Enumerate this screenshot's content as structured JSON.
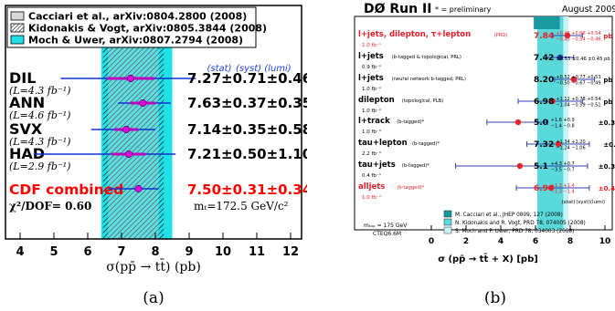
{
  "chart_data": [
    {
      "type": "scatter",
      "panel_label": "(a)",
      "xlabel": "σ(pp̄ → tt̄) (pb)",
      "x_ticks": [
        4,
        5,
        6,
        7,
        8,
        9,
        10,
        11,
        12
      ],
      "xlim": [
        4,
        12
      ],
      "grid": false,
      "legend_position": "top-left",
      "legend": [
        {
          "label": "Cacciari et al., arXiv:0804.2800 (2008)",
          "style": "grey-box"
        },
        {
          "label": "Kidonakis & Vogt, arXiv:0805.3844 (2008)",
          "style": "hatched"
        },
        {
          "label": "Moch & Uwer, arXiv:0807.2794 (2008)",
          "style": "cyan"
        }
      ],
      "theory_bands": [
        {
          "name": "Cacciari et al.",
          "range": [
            6.6,
            8.1
          ],
          "color": "#d8d8d8"
        },
        {
          "name": "Kidonakis & Vogt",
          "range": [
            6.45,
            8.25
          ],
          "color": "hatched"
        },
        {
          "name": "Moch & Uwer",
          "range": [
            6.4,
            8.5
          ],
          "color": "#22e0e8"
        }
      ],
      "column_headers": [
        "(stat)",
        "(syst)",
        "(lumi)"
      ],
      "points": [
        {
          "name": "DIL",
          "lumi": "(L=4.3 fb⁻¹)",
          "value": 7.27,
          "stat": 0.71,
          "syst": 0.46,
          "lumi_err": 0.42,
          "text": "7.27±0.71±0.46±0.42",
          "total_range": [
            5.2,
            9.2
          ]
        },
        {
          "name": "ANN",
          "lumi": "(L=4.6 fb⁻¹)",
          "value": 7.63,
          "stat": 0.37,
          "syst": 0.35,
          "lumi_err": 0.15,
          "text": "7.63±0.37±0.35±0.15",
          "total_range": [
            6.9,
            8.45
          ]
        },
        {
          "name": "SVX",
          "lumi": "(L=4.3 fb⁻¹)",
          "value": 7.14,
          "stat": 0.35,
          "syst": 0.58,
          "lumi_err": 0.14,
          "text": "7.14±0.35±0.58±0.14",
          "total_range": [
            6.1,
            8.0
          ]
        },
        {
          "name": "HAD",
          "lumi": "(L=2.9 fb⁻¹)",
          "value": 7.21,
          "stat": 0.5,
          "syst": 1.1,
          "lumi_err": 0.42,
          "text": "7.21±0.50±1.10±0.42",
          "total_range": [
            4.4,
            8.6
          ]
        }
      ],
      "combined": {
        "name": "CDF combined",
        "value": 7.5,
        "stat": 0.31,
        "syst": 0.34,
        "lumi_err": 0.15,
        "text": "7.50±0.31±0.34±0.15",
        "total_range": [
          6.6,
          8.1
        ],
        "color": "#ff0000"
      },
      "chi2": "χ²/DOF= 0.60",
      "mass_note": "mₜ=172.5 GeV/c²"
    },
    {
      "type": "scatter",
      "panel_label": "(b)",
      "title": "DØ Run II",
      "subtitle": "* = preliminary",
      "date": "August 2009",
      "xlabel": "σ (pp̄ → tt̄ + X) [pb]",
      "x_ticks": [
        0,
        2,
        4,
        6,
        8,
        10,
        12
      ],
      "xlim": [
        0,
        12.6
      ],
      "grid": false,
      "theory_bands": [
        {
          "name": "Cacciari",
          "range": [
            5.9,
            7.4
          ],
          "color": "#1a9aa0"
        },
        {
          "name": "Kidonakis",
          "range": [
            6.1,
            7.6
          ],
          "color": "#5ad8da"
        },
        {
          "name": "Moch",
          "range": [
            6.3,
            7.9
          ],
          "color": "#c8f4f6"
        }
      ],
      "column_headers": [
        "(stat)",
        "(syst)",
        "(lumi)"
      ],
      "points": [
        {
          "label": "l+jets, dilepton, τ+lepton",
          "tag": "(PRD)",
          "lumi": "1.0 fb⁻¹",
          "value": 7.84,
          "low": 7.0,
          "high": 8.7,
          "res_main": "7.84",
          "res_sup": "+0.46 +0.66 +0.54",
          "res_sub": "−0.45 −0.54 −0.46",
          "res_tail": "pb",
          "color": "#e8202a"
        },
        {
          "label": "l+jets",
          "tag": "(b-tagged & topological, PRL)",
          "lumi": "0.9 fb⁻¹",
          "value": 7.42,
          "low": 6.6,
          "high": 8.2,
          "res_main": "7.42",
          "res_sup": "",
          "res_sub": "",
          "res_tail": "±0.53 ±0.46 ±0.45 pb",
          "color": "#1c2d9a"
        },
        {
          "label": "l+jets",
          "tag": "(neural network b-tagged, PRL)",
          "lumi": "1.0 fb⁻¹",
          "value": 8.2,
          "low": 7.1,
          "high": 9.4,
          "res_main": "8.20",
          "res_sup": "+0.52 +0.77 +0.53",
          "res_sub": "−0.50 −0.67 −0.49",
          "res_tail": "pb",
          "color": "#e8202a"
        },
        {
          "label": "dilepton",
          "tag": "(topological, PLB)",
          "lumi": "1.0 fb⁻¹",
          "value": 6.98,
          "low": 5.0,
          "high": 8.7,
          "res_main": "6.98",
          "res_sup": "+1.12 +0.78 +0.54",
          "res_sub": "−1.04 −0.59 −0.51",
          "res_tail": "pb",
          "color": "#e8202a"
        },
        {
          "label": "l+track",
          "tag": "(b-tagged)*",
          "lumi": "1.0 fb⁻¹",
          "value": 5.0,
          "low": 3.2,
          "high": 6.7,
          "res_main": "5.0",
          "res_sup": "+1.6  +0.9",
          "res_sub": "−1.4  −0.8",
          "res_tail": "±0.3  pb",
          "color": "#e8202a"
        },
        {
          "label": "tau+lepton",
          "tag": "(b-tagged)*",
          "lumi": "2.2 fb⁻¹",
          "value": 7.32,
          "low": 5.5,
          "high": 9.1,
          "res_main": "7.32",
          "res_sup": "+1.34 +1.20",
          "res_sub": "−1.24 −1.06",
          "res_tail": "±0.45 pb",
          "color": "#e8202a"
        },
        {
          "label": "tau+jets",
          "tag": "(b-tagged)*",
          "lumi": "0.4 fb⁻¹",
          "value": 5.1,
          "low": 1.4,
          "high": 9.0,
          "res_main": "5.1",
          "res_sup": "+4.3  +0.7",
          "res_sub": "−3.5  −0.7",
          "res_tail": "±0.3  pb",
          "color": "#e8202a"
        },
        {
          "label": "alljets",
          "tag": "(b-tagged)*",
          "lumi": "1.0 fb⁻¹",
          "value": 6.9,
          "low": 4.9,
          "high": 9.1,
          "res_main": "6.9",
          "res_sup": "+1.3  +1.4",
          "res_sub": "−1.3  −1.4",
          "res_tail": "±0.4  pb",
          "color": "#e8202a"
        }
      ],
      "theory_note": "mₜₒₚ = 175 GeV",
      "pdf_note": "CTEQ6.6M",
      "legend": [
        {
          "label": "M. Cacciari et al., JHEP 0809, 127 (2008)",
          "color": "#1a9aa0"
        },
        {
          "label": "N. Kidonakis and R. Vogt, PRD 78, 074005 (2008)",
          "color": "#5ad8da"
        },
        {
          "label": "S. Moch and P. Uwer, PRD 78, 034003 (2008)",
          "color": "#c8f4f6"
        }
      ]
    }
  ]
}
